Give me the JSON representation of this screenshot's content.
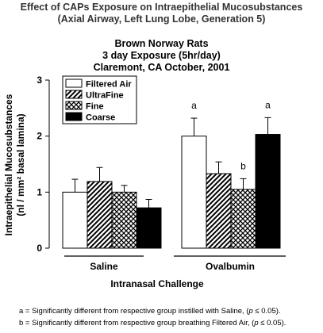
{
  "header": {
    "title": "Effect of CAPs Exposure on Intraepithelial Mucosubstances",
    "title_line2": "(Axial Airway, Left Lung Lobe, Generation 5)",
    "subtitle1": "Brown Norway Rats",
    "subtitle2": "3 day Exposure (5hr/day)",
    "subtitle3": "Claremont, CA  October, 2001"
  },
  "chart_data": {
    "type": "bar",
    "ylabel_line1": "Intraepithelial Mucosubstances",
    "ylabel_line2": "(nl / mm² basal lamina)",
    "xlabel": "Intranasal Challenge",
    "ylim": [
      0,
      3
    ],
    "yticks": [
      "0",
      "1",
      "2",
      "3"
    ],
    "grid": false,
    "legend_position": "top-left",
    "categories": [
      "Saline",
      "Ovalbumin"
    ],
    "series": [
      {
        "name": "Filtered Air",
        "pattern": "solid-white",
        "values": [
          1.0,
          2.0
        ],
        "errors": [
          0.23,
          0.32
        ]
      },
      {
        "name": "UltraFine",
        "pattern": "diagonal-hatch",
        "values": [
          1.19,
          1.33
        ],
        "errors": [
          0.25,
          0.21
        ]
      },
      {
        "name": "Fine",
        "pattern": "crosshatch",
        "values": [
          1.0,
          1.05
        ],
        "errors": [
          0.12,
          0.19
        ]
      },
      {
        "name": "Coarse",
        "pattern": "solid-black",
        "values": [
          0.72,
          2.03
        ],
        "errors": [
          0.15,
          0.3
        ]
      }
    ],
    "annotations": [
      {
        "category": "Ovalbumin",
        "series": "Filtered Air",
        "text": "a"
      },
      {
        "category": "Ovalbumin",
        "series": "Fine",
        "text": "b"
      },
      {
        "category": "Ovalbumin",
        "series": "Coarse",
        "text": "a"
      }
    ]
  },
  "footnotes": {
    "a_prefix": "a = Significantly different from respective group instilled with Saline, (",
    "a_p": "p",
    "a_suffix": " ≤ 0.05).",
    "b_prefix": "b = Significantly different from respective group breathing Filtered Air, (",
    "b_p": "p",
    "b_suffix": " ≤ 0.05)."
  }
}
